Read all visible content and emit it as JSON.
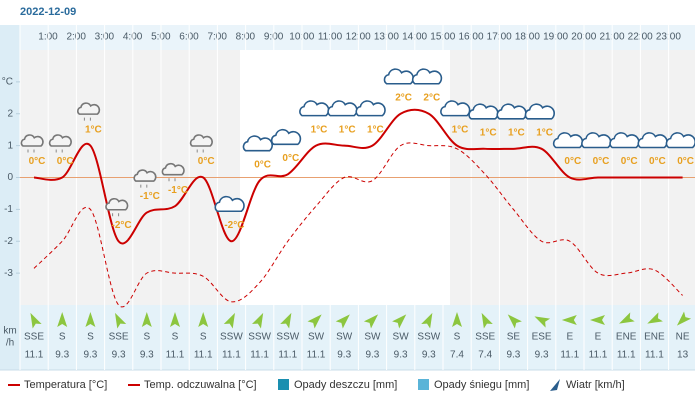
{
  "chart_data": {
    "type": "line",
    "date": "2022-12-09",
    "hour_labels": [
      "1:00",
      "2:00",
      "3:00",
      "4:00",
      "5:00",
      "6:00",
      "7:00",
      "8:00",
      "9:00",
      "10:00",
      "11:00",
      "12:00",
      "13:00",
      "14:00",
      "15:00",
      "16:00",
      "17:00",
      "18:00",
      "19:00",
      "20:00",
      "21:00",
      "22:00",
      "23:00"
    ],
    "ylim": [
      -4,
      4
    ],
    "yticks": [
      {
        "value": 3,
        "label": "°C"
      },
      2,
      1,
      0,
      -1,
      -2,
      -3
    ],
    "series": [
      {
        "name": "Temperatura [°C]",
        "color": "#cc0000",
        "values": [
          0,
          0,
          1,
          -2,
          -1.1,
          -0.9,
          0,
          -2,
          -0.1,
          0.1,
          1,
          1,
          1,
          2,
          2,
          1,
          0.9,
          0.9,
          0.9,
          0,
          0,
          0,
          0,
          0
        ],
        "value_labels": [
          "0°C",
          "0°C",
          "1°C",
          "-2°C",
          "-1°C",
          "-1°C",
          "0°C",
          "-2°C",
          "0°C",
          "0°C",
          "1°C",
          "1°C",
          "1°C",
          "2°C",
          "2°C",
          "1°C",
          "1°C",
          "1°C",
          "1°C",
          "0°C",
          "0°C",
          "0°C",
          "0°C",
          "0°C"
        ]
      },
      {
        "name": "Temp. odczuwalna [°C]",
        "color": "#cc0000",
        "dashed": true,
        "values": [
          -2.85,
          -2,
          -1,
          -4,
          -3,
          -3,
          -3.1,
          -3.9,
          -3.3,
          -2,
          -0.9,
          0,
          -0.1,
          1,
          1,
          0.9,
          0.1,
          -1,
          -2,
          -2,
          -3,
          -3,
          -2.9,
          -3.7
        ]
      }
    ],
    "legend_extra": [
      {
        "name": "Opady deszczu [mm]",
        "color": "#1a8fb0"
      },
      {
        "name": "Opady śniegu [mm]",
        "color": "#5ab4d8"
      },
      {
        "name": "Wiatr [km/h]",
        "color": "#2a5d8c"
      }
    ],
    "wind": {
      "unit_lines": [
        "km",
        "/h"
      ],
      "color": "#8cc63f",
      "directions": [
        "SSE",
        "S",
        "S",
        "SSE",
        "S",
        "S",
        "S",
        "SSW",
        "SSW",
        "SSW",
        "SW",
        "SW",
        "SW",
        "SW",
        "SSW",
        "S",
        "SSE",
        "SE",
        "ESE",
        "E",
        "E",
        "ENE",
        "ENE",
        "NE"
      ],
      "speeds": [
        11.1,
        9.3,
        9.3,
        9.3,
        9.3,
        11.1,
        11.1,
        11.1,
        11.1,
        11.1,
        11.1,
        9.3,
        9.3,
        9.3,
        9.3,
        7.4,
        7.4,
        9.3,
        9.3,
        11.1,
        11.1,
        11.1,
        11.1,
        13
      ]
    }
  }
}
